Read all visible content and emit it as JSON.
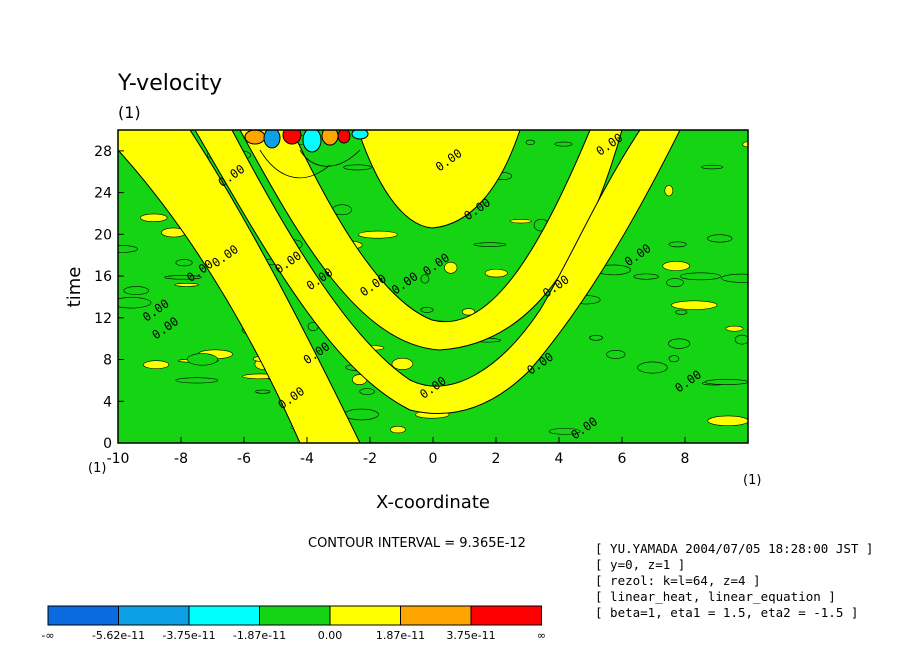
{
  "chart_data": {
    "type": "heatmap",
    "title": "Y-velocity",
    "units": "(1)",
    "xlabel": "X-coordinate",
    "ylabel": "time",
    "x_units": "(1)",
    "y_units": "(1)",
    "xlim": [
      -10,
      10
    ],
    "ylim": [
      0,
      30
    ],
    "x_ticks": [
      -10,
      -8,
      -6,
      -4,
      -2,
      0,
      2,
      4,
      6,
      8
    ],
    "y_ticks": [
      0,
      4,
      8,
      12,
      16,
      20,
      24,
      28
    ],
    "x_tick_labels": [
      "-10",
      "-8",
      "-6",
      "-4",
      "-2",
      "0",
      "2",
      "4",
      "6",
      "8"
    ],
    "y_tick_labels": [
      "0",
      "4",
      "8",
      "12",
      "16",
      "20",
      "24",
      "28"
    ],
    "contour_interval": "CONTOUR INTERVAL = 9.365E-12",
    "contour_labels": [
      {
        "text": "0.00",
        "x": 0.2,
        "y": 26.0
      },
      {
        "text": "0.00",
        "x": 5.3,
        "y": 27.5
      },
      {
        "text": "0.00",
        "x": -6.7,
        "y": 24.5
      },
      {
        "text": "0.00",
        "x": 1.1,
        "y": 21.3
      },
      {
        "text": "0.00",
        "x": -6.9,
        "y": 16.8
      },
      {
        "text": "0.00",
        "x": -4.9,
        "y": 16.2
      },
      {
        "text": "0.00",
        "x": -0.2,
        "y": 16.0
      },
      {
        "text": "0.00",
        "x": -7.7,
        "y": 15.4
      },
      {
        "text": "0.00",
        "x": -3.9,
        "y": 14.6
      },
      {
        "text": "0.00",
        "x": -1.2,
        "y": 14.2
      },
      {
        "text": "0.00",
        "x": -2.2,
        "y": 14.0
      },
      {
        "text": "0.00",
        "x": 6.2,
        "y": 16.9
      },
      {
        "text": "0.00",
        "x": 3.6,
        "y": 13.9
      },
      {
        "text": "0.00",
        "x": -9.1,
        "y": 11.6
      },
      {
        "text": "0.00",
        "x": -8.8,
        "y": 9.9
      },
      {
        "text": "0.00",
        "x": -4.0,
        "y": 7.5
      },
      {
        "text": "0.00",
        "x": 3.1,
        "y": 6.5
      },
      {
        "text": "0.00",
        "x": 7.8,
        "y": 4.8
      },
      {
        "text": "0.00",
        "x": -4.8,
        "y": 3.2
      },
      {
        "text": "0.00",
        "x": -0.3,
        "y": 4.2
      },
      {
        "text": "0.00",
        "x": 4.5,
        "y": 0.3
      }
    ],
    "legend": {
      "colors": [
        "#0a6be0",
        "#0da0e6",
        "#00ffff",
        "#14d414",
        "#ffff00",
        "#ffa500",
        "#ff0000"
      ],
      "labels": [
        "-∞",
        "-5.62e-11",
        "-3.75e-11",
        "-1.87e-11",
        "0.00",
        "1.87e-11",
        "3.75e-11",
        "∞"
      ],
      "placement": "bottom-left"
    },
    "info_lines": [
      "[ YU.YAMADA 2004/07/05 18:28:00 JST ]",
      "[ y=0, z=1 ]",
      "[ rezol: k=l=64, z=4 ]",
      "[ linear_heat, linear_equation ]",
      "[ beta=1, eta1 = 1.5, eta2 = -1.5 ]"
    ]
  }
}
